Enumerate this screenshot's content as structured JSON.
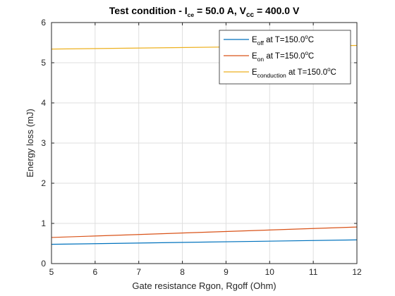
{
  "chart_data": {
    "type": "line",
    "title": {
      "prefix": "Test condition -  I",
      "i_sub": "ce",
      "i_value": " = 50.0 A, V",
      "v_sub": "cc",
      "v_value": " = 400.0 V"
    },
    "xlabel": "Gate resistance Rgon, Rgoff (Ohm)",
    "ylabel": "Energy loss (mJ)",
    "xlim": [
      5,
      12
    ],
    "ylim": [
      0,
      6
    ],
    "xticks": [
      "5",
      "6",
      "7",
      "8",
      "9",
      "10",
      "11",
      "12"
    ],
    "yticks": [
      "0",
      "1",
      "2",
      "3",
      "4",
      "5",
      "6"
    ],
    "grid": true,
    "legend_position": "top-right",
    "series": [
      {
        "label_main": "E",
        "label_sub": "off",
        "label_rest": " at T=150.0",
        "label_sup": "o",
        "label_unit": "C",
        "color": "#0072BD",
        "x": [
          5,
          12
        ],
        "y": [
          0.48,
          0.59
        ]
      },
      {
        "label_main": "E",
        "label_sub": "on",
        "label_rest": " at T=150.0",
        "label_sup": "o",
        "label_unit": "C",
        "color": "#D95319",
        "x": [
          5,
          12
        ],
        "y": [
          0.65,
          0.91
        ]
      },
      {
        "label_main": "E",
        "label_sub": "conduction",
        "label_rest": " at T=150.0",
        "label_sup": "o",
        "label_unit": "C",
        "color": "#EDB120",
        "x": [
          5,
          12
        ],
        "y": [
          5.34,
          5.43
        ]
      }
    ]
  }
}
